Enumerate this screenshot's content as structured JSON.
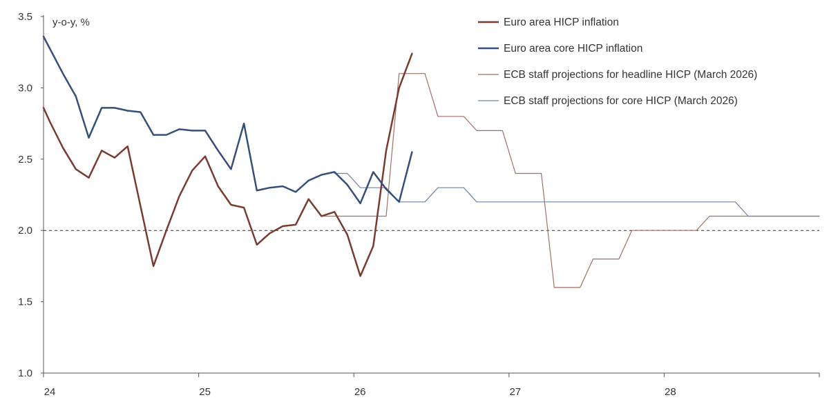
{
  "chart_data": {
    "type": "line",
    "unit_label": "y-o-y, %",
    "ylim": [
      1.0,
      3.5
    ],
    "yticks": [
      "1.0",
      "1.5",
      "2.0",
      "2.5",
      "3.0",
      "3.5"
    ],
    "x_domain": [
      0,
      60
    ],
    "xticks": [
      {
        "x": 0,
        "label": "24"
      },
      {
        "x": 12,
        "label": "25"
      },
      {
        "x": 24,
        "label": "26"
      },
      {
        "x": 36,
        "label": "27"
      },
      {
        "x": 48,
        "label": "28"
      }
    ],
    "reference_line": {
      "y": 2.0,
      "style": "dashed"
    },
    "legend_position": "top-right",
    "series": [
      {
        "name": "Euro area HICP inflation",
        "color": "#7a3b2e",
        "width": 2.5,
        "points": [
          [
            0,
            2.86
          ],
          [
            0.5,
            2.76
          ],
          [
            1.5,
            2.58
          ],
          [
            2.5,
            2.43
          ],
          [
            3.5,
            2.37
          ],
          [
            4.5,
            2.56
          ],
          [
            5.5,
            2.51
          ],
          [
            6.5,
            2.59
          ],
          [
            7.5,
            2.17
          ],
          [
            8.5,
            1.75
          ],
          [
            9.5,
            2.0
          ],
          [
            10.5,
            2.24
          ],
          [
            11.5,
            2.42
          ],
          [
            12.5,
            2.52
          ],
          [
            13.5,
            2.31
          ],
          [
            14.5,
            2.18
          ],
          [
            15.5,
            2.16
          ],
          [
            16.5,
            1.9
          ],
          [
            17.5,
            1.98
          ],
          [
            18.5,
            2.03
          ],
          [
            19.5,
            2.04
          ],
          [
            20.5,
            2.22
          ],
          [
            21.5,
            2.1
          ],
          [
            22.5,
            2.13
          ],
          [
            23.5,
            1.97
          ],
          [
            24.5,
            1.68
          ],
          [
            25.5,
            1.89
          ],
          [
            26.5,
            2.56
          ],
          [
            27.5,
            3.0
          ],
          [
            28.5,
            3.24
          ]
        ]
      },
      {
        "name": "Euro area core HICP inflation",
        "color": "#34507a",
        "width": 2.5,
        "points": [
          [
            0,
            3.36
          ],
          [
            1.5,
            3.1
          ],
          [
            2.5,
            2.94
          ],
          [
            3.5,
            2.65
          ],
          [
            4.5,
            2.86
          ],
          [
            5.5,
            2.86
          ],
          [
            6.5,
            2.84
          ],
          [
            7.5,
            2.83
          ],
          [
            8.5,
            2.67
          ],
          [
            9.5,
            2.67
          ],
          [
            10.5,
            2.71
          ],
          [
            11.5,
            2.7
          ],
          [
            12.5,
            2.7
          ],
          [
            13.5,
            2.56
          ],
          [
            14.5,
            2.43
          ],
          [
            15.5,
            2.75
          ],
          [
            16.5,
            2.28
          ],
          [
            17.5,
            2.3
          ],
          [
            18.5,
            2.31
          ],
          [
            19.5,
            2.27
          ],
          [
            20.5,
            2.35
          ],
          [
            21.5,
            2.39
          ],
          [
            22.5,
            2.41
          ],
          [
            23.5,
            2.32
          ],
          [
            24.5,
            2.19
          ],
          [
            25.5,
            2.41
          ],
          [
            26.5,
            2.29
          ],
          [
            27.5,
            2.2
          ],
          [
            28.5,
            2.55
          ]
        ]
      },
      {
        "name": "ECB staff projections for headline HICP (March 2026)",
        "color": "#a26e62",
        "width": 1.2,
        "points": [
          [
            21.5,
            2.1
          ],
          [
            26.5,
            2.1
          ],
          [
            27.5,
            3.1
          ],
          [
            29.5,
            3.1
          ],
          [
            30.5,
            2.8
          ],
          [
            32.5,
            2.8
          ],
          [
            33.5,
            2.7
          ],
          [
            35.5,
            2.7
          ],
          [
            36.5,
            2.4
          ],
          [
            38.5,
            2.4
          ],
          [
            39.5,
            1.6
          ],
          [
            41.5,
            1.6
          ],
          [
            42.5,
            1.8
          ],
          [
            44.5,
            1.8
          ],
          [
            45.5,
            2.0
          ],
          [
            50.5,
            2.0
          ],
          [
            51.5,
            2.1
          ],
          [
            60,
            2.1
          ]
        ]
      },
      {
        "name": "ECB staff projections for core HICP (March 2026)",
        "color": "#6e82a4",
        "width": 1.2,
        "points": [
          [
            22.5,
            2.4
          ],
          [
            23.5,
            2.4
          ],
          [
            24.5,
            2.3
          ],
          [
            26.5,
            2.3
          ],
          [
            27.5,
            2.2
          ],
          [
            29.5,
            2.2
          ],
          [
            30.5,
            2.3
          ],
          [
            32.5,
            2.3
          ],
          [
            33.5,
            2.2
          ],
          [
            53.5,
            2.2
          ],
          [
            54.5,
            2.1
          ],
          [
            60,
            2.1
          ]
        ]
      }
    ]
  }
}
